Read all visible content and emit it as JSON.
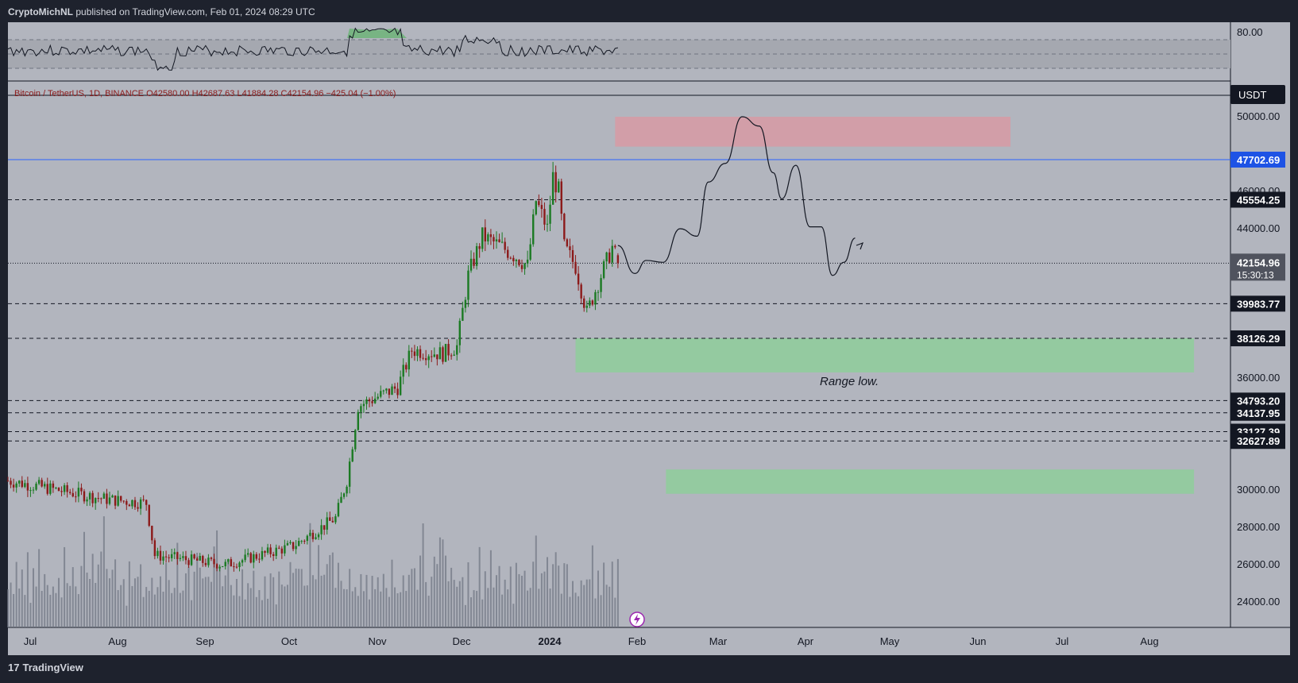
{
  "header": {
    "author": "CryptoMichNL",
    "published_text": "published on TradingView.com, Feb 01, 2024 08:29 UTC"
  },
  "footer": {
    "brand_mark": "17",
    "brand": "TradingView"
  },
  "symbol_line": "Bitcoin / TetherUS, 1D, BINANCE  O42580.00  H42687.63  L41884.28  C42154.96  −425.04 (−1.00%)",
  "currency_label": "USDT",
  "rsi_axis_label": "80.00",
  "price_axis": [
    "50000.00",
    "46000.00",
    "44000.00",
    "36000.00",
    "30000.00",
    "28000.00",
    "26000.00",
    "24000.00"
  ],
  "x_axis_labels": [
    "Jul",
    "Aug",
    "Sep",
    "Oct",
    "Nov",
    "Dec",
    "2024",
    "Feb",
    "Mar",
    "Apr",
    "May",
    "Jun",
    "Jul",
    "Aug"
  ],
  "level_labels": [
    {
      "price": 47702.69,
      "text": "47702.69",
      "color": "#1e53e5"
    },
    {
      "price": 45554.25,
      "text": "45554.25",
      "color": "#131722"
    },
    {
      "price": 39983.77,
      "text": "39983.77",
      "color": "#131722"
    },
    {
      "price": 38126.29,
      "text": "38126.29",
      "color": "#131722"
    },
    {
      "price": 34793.2,
      "text": "34793.20",
      "color": "#131722"
    },
    {
      "price": 34137.95,
      "text": "34137.95",
      "color": "#131722"
    },
    {
      "price": 33127.39,
      "text": "33127.39",
      "color": "#131722"
    },
    {
      "price": 32627.89,
      "text": "32627.89",
      "color": "#131722"
    }
  ],
  "last_price": {
    "price": 42154.96,
    "text": "42154.96",
    "countdown": "15:30:13"
  },
  "annotation": "Range low.",
  "colors": {
    "bull": "#1b7a23",
    "bear": "#8c1a1a",
    "supply": "#d998a3",
    "demand": "#8ccf99",
    "level_blue": "#2962ff"
  },
  "chart_data": {
    "type": "candlestick",
    "series": [
      {
        "name": "Bitcoin / TetherUS"
      }
    ],
    "yrange": [
      23000,
      52000
    ],
    "x_dates": [
      "2023-07-01",
      "2023-08-01",
      "2023-09-01",
      "2023-10-01",
      "2023-11-01",
      "2023-12-01",
      "2024-01-01",
      "2024-02-01",
      "2024-03-01",
      "2024-04-01",
      "2024-05-01",
      "2024-06-01",
      "2024-07-01",
      "2024-08-01"
    ],
    "last_candle": {
      "open": 42580.0,
      "high": 42687.63,
      "low": 41884.28,
      "close": 42154.96
    },
    "price_path": [
      [
        0,
        30500
      ],
      [
        35,
        29500
      ],
      [
        49,
        29300
      ],
      [
        52,
        26500
      ],
      [
        77,
        26000
      ],
      [
        101,
        27000
      ],
      [
        116,
        28500
      ],
      [
        120,
        30500
      ],
      [
        124,
        34500
      ],
      [
        138,
        35500
      ],
      [
        143,
        37500
      ],
      [
        154,
        37300
      ],
      [
        159,
        37700
      ],
      [
        163,
        41500
      ],
      [
        168,
        43600
      ],
      [
        175,
        43000
      ],
      [
        180,
        42500
      ],
      [
        184,
        42000
      ],
      [
        187,
        45500
      ],
      [
        191,
        44000
      ],
      [
        193,
        46800
      ],
      [
        195,
        46000
      ],
      [
        197,
        43000
      ],
      [
        201,
        42000
      ],
      [
        205,
        39500
      ],
      [
        210,
        41500
      ],
      [
        214,
        43000
      ],
      [
        216,
        42154.96
      ]
    ],
    "volume_relative": [
      0.4,
      0.5,
      0.3,
      0.6,
      0.35,
      0.55,
      0.45,
      0.7,
      0.3,
      0.5,
      0.4,
      0.65,
      0.35,
      0.45,
      0.55,
      0.3,
      0.6,
      0.4,
      0.5,
      0.35,
      0.7,
      0.45,
      0.5,
      0.8,
      0.55,
      0.4,
      0.6,
      0.9,
      0.5,
      0.45,
      0.7,
      0.6,
      0.55,
      0.8,
      1.0,
      0.65,
      0.5,
      0.75,
      0.6,
      0.45
    ],
    "projection_path": [
      [
        216,
        43100
      ],
      [
        222,
        41600
      ],
      [
        226,
        42300
      ],
      [
        232,
        42200
      ],
      [
        238,
        44000
      ],
      [
        244,
        43600
      ],
      [
        248,
        46500
      ],
      [
        254,
        47500
      ],
      [
        260,
        50000
      ],
      [
        266,
        49500
      ],
      [
        271,
        47000
      ],
      [
        274,
        45600
      ],
      [
        279,
        47400
      ],
      [
        284,
        44100
      ],
      [
        288,
        44100
      ],
      [
        292,
        41500
      ],
      [
        296,
        42200
      ],
      [
        300,
        43500
      ]
    ],
    "zones": [
      {
        "type": "supply",
        "from_day": 215,
        "to_day": 355,
        "top": 50000,
        "bottom": 48400
      },
      {
        "type": "demand",
        "from_day": 201,
        "to_day": 420,
        "top": 38126.29,
        "bottom": 36300
      },
      {
        "type": "demand",
        "from_day": 233,
        "to_day": 420,
        "top": 31100,
        "bottom": 29800
      }
    ],
    "horizontal_levels": [
      47702.69,
      45554.25,
      42154.96,
      39983.77,
      38126.29,
      34793.2,
      34137.95,
      33127.39,
      32627.89
    ],
    "rsi": {
      "band": [
        30,
        70
      ],
      "upper_label": 80
    }
  }
}
